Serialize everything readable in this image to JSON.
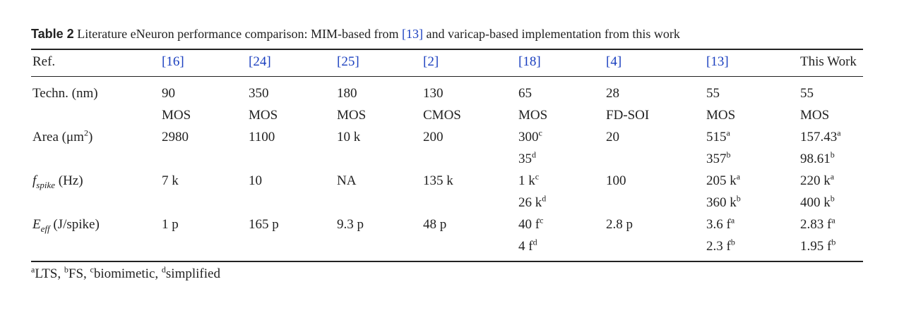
{
  "caption": {
    "label": "Table 2",
    "text_1": "Literature eNeuron performance comparison: MIM-based from ",
    "ref": "[13]",
    "text_2": " and varicap-based implementation from this work"
  },
  "header": [
    "Ref.",
    "[16]",
    "[24]",
    "[25]",
    "[2]",
    "[18]",
    "[4]",
    "[13]",
    "This Work"
  ],
  "rows": {
    "techn": {
      "label": "Techn. (nm)",
      "line1": [
        "90",
        "350",
        "180",
        "130",
        "65",
        "28",
        "55",
        "55"
      ],
      "line2": [
        "MOS",
        "MOS",
        "MOS",
        "CMOS",
        "MOS",
        "FD-SOI",
        "MOS",
        "MOS"
      ]
    },
    "area": {
      "label": "Area (μm",
      "label_sup": "2",
      "label_end": ")",
      "line1": [
        {
          "v": "2980",
          "s": ""
        },
        {
          "v": "1100",
          "s": ""
        },
        {
          "v": "10 k",
          "s": ""
        },
        {
          "v": "200",
          "s": ""
        },
        {
          "v": "300",
          "s": "c"
        },
        {
          "v": "20",
          "s": ""
        },
        {
          "v": "515",
          "s": "a"
        },
        {
          "v": "157.43",
          "s": "a"
        }
      ],
      "line2": [
        {
          "v": "",
          "s": ""
        },
        {
          "v": "",
          "s": ""
        },
        {
          "v": "",
          "s": ""
        },
        {
          "v": "",
          "s": ""
        },
        {
          "v": "35",
          "s": "d"
        },
        {
          "v": "",
          "s": ""
        },
        {
          "v": "357",
          "s": "b"
        },
        {
          "v": "98.61",
          "s": "b"
        }
      ]
    },
    "fspike": {
      "label_f": "f",
      "label_sub": "spike",
      "label_end": " (Hz)",
      "line1": [
        {
          "v": "7 k",
          "s": ""
        },
        {
          "v": "10",
          "s": ""
        },
        {
          "v": "NA",
          "s": ""
        },
        {
          "v": "135 k",
          "s": ""
        },
        {
          "v": "1 k",
          "s": "c"
        },
        {
          "v": "100",
          "s": ""
        },
        {
          "v": "205 k",
          "s": "a"
        },
        {
          "v": "220 k",
          "s": "a"
        }
      ],
      "line2": [
        {
          "v": "",
          "s": ""
        },
        {
          "v": "",
          "s": ""
        },
        {
          "v": "",
          "s": ""
        },
        {
          "v": "",
          "s": ""
        },
        {
          "v": "26 k",
          "s": "d"
        },
        {
          "v": "",
          "s": ""
        },
        {
          "v": "360 k",
          "s": "b"
        },
        {
          "v": "400 k",
          "s": "b"
        }
      ]
    },
    "eeff": {
      "label_e": "E",
      "label_sub": "eff",
      "label_end": " (J/spike)",
      "line1": [
        {
          "v": "1 p",
          "s": ""
        },
        {
          "v": "165 p",
          "s": ""
        },
        {
          "v": "9.3 p",
          "s": ""
        },
        {
          "v": "48 p",
          "s": ""
        },
        {
          "v": "40 f",
          "s": "c"
        },
        {
          "v": "2.8 p",
          "s": ""
        },
        {
          "v": "3.6 f",
          "s": "a"
        },
        {
          "v": "2.83 f",
          "s": "a"
        }
      ],
      "line2": [
        {
          "v": "",
          "s": ""
        },
        {
          "v": "",
          "s": ""
        },
        {
          "v": "",
          "s": ""
        },
        {
          "v": "",
          "s": ""
        },
        {
          "v": "4 f",
          "s": "d"
        },
        {
          "v": "",
          "s": ""
        },
        {
          "v": "2.3 f",
          "s": "b"
        },
        {
          "v": "1.95 f",
          "s": "b"
        }
      ]
    }
  },
  "footnotes": [
    {
      "mark": "a",
      "text": "LTS, "
    },
    {
      "mark": "b",
      "text": "FS, "
    },
    {
      "mark": "c",
      "text": "biomimetic, "
    },
    {
      "mark": "d",
      "text": "simplified"
    }
  ]
}
